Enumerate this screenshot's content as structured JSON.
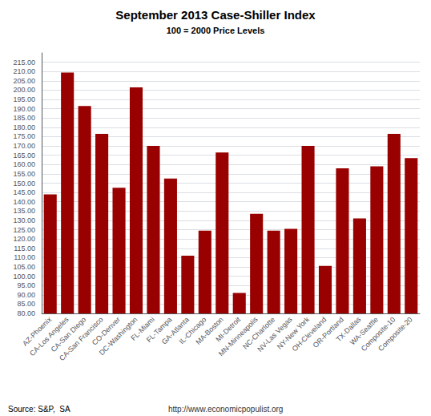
{
  "chart_data": {
    "type": "bar",
    "title": "September 2013 Case-Shiller Index",
    "subtitle": "100 = 2000 Price Levels",
    "categories": [
      "AZ-Phoenix",
      "CA-Los Angeles",
      "CA-San Diego",
      "CA-San Francisco",
      "CO-Denver",
      "DC-Washington",
      "FL-Miami",
      "FL-Tampa",
      "GA-Atlanta",
      "IL-Chicago",
      "MA-Boston",
      "MI-Detroit",
      "MN-Minneapolis",
      "NC-Charlotte",
      "NV-Las Vegas",
      "NY-New York",
      "OH-Cleveland",
      "OR-Portland",
      "TX-Dallas",
      "WA-Seattle",
      "Composite-10",
      "Composite-20"
    ],
    "values": [
      144.0,
      209.5,
      191.5,
      176.5,
      147.5,
      201.5,
      170.0,
      152.5,
      111.0,
      124.5,
      166.5,
      91.0,
      133.5,
      124.5,
      125.5,
      170.0,
      105.5,
      158.0,
      131.0,
      159.0,
      176.5,
      163.5
    ],
    "color": "#990000",
    "ylim": [
      80,
      220
    ],
    "yticks": [
      {
        "value": 80,
        "label": "80.00"
      },
      {
        "value": 85,
        "label": "85.00"
      },
      {
        "value": 90,
        "label": "90.00"
      },
      {
        "value": 95,
        "label": "95.00"
      },
      {
        "value": 100,
        "label": "100.00"
      },
      {
        "value": 105,
        "label": "105.00"
      },
      {
        "value": 110,
        "label": "110.00"
      },
      {
        "value": 115,
        "label": "115.00"
      },
      {
        "value": 120,
        "label": "120.00"
      },
      {
        "value": 125,
        "label": "125.00"
      },
      {
        "value": 130,
        "label": "130.00"
      },
      {
        "value": 135,
        "label": "135.00"
      },
      {
        "value": 140,
        "label": "140.00"
      },
      {
        "value": 145,
        "label": "145.00"
      },
      {
        "value": 150,
        "label": "150.00"
      },
      {
        "value": 155,
        "label": "155.00"
      },
      {
        "value": 160,
        "label": "160.00"
      },
      {
        "value": 165,
        "label": "165.00"
      },
      {
        "value": 170,
        "label": "170.00"
      },
      {
        "value": 175,
        "label": "175.00"
      },
      {
        "value": 180,
        "label": "180.00"
      },
      {
        "value": 185,
        "label": "185.00"
      },
      {
        "value": 190,
        "label": "190.00"
      },
      {
        "value": 195,
        "label": "195.00"
      },
      {
        "value": 200,
        "label": "200.00"
      },
      {
        "value": 205,
        "label": "205.00"
      },
      {
        "value": 210,
        "label": "210.00"
      },
      {
        "value": 215,
        "label": "215.00"
      }
    ],
    "grid": true,
    "annotations": [
      "Source: S&P,  SA",
      "http://www.economicpopulist.org"
    ]
  }
}
